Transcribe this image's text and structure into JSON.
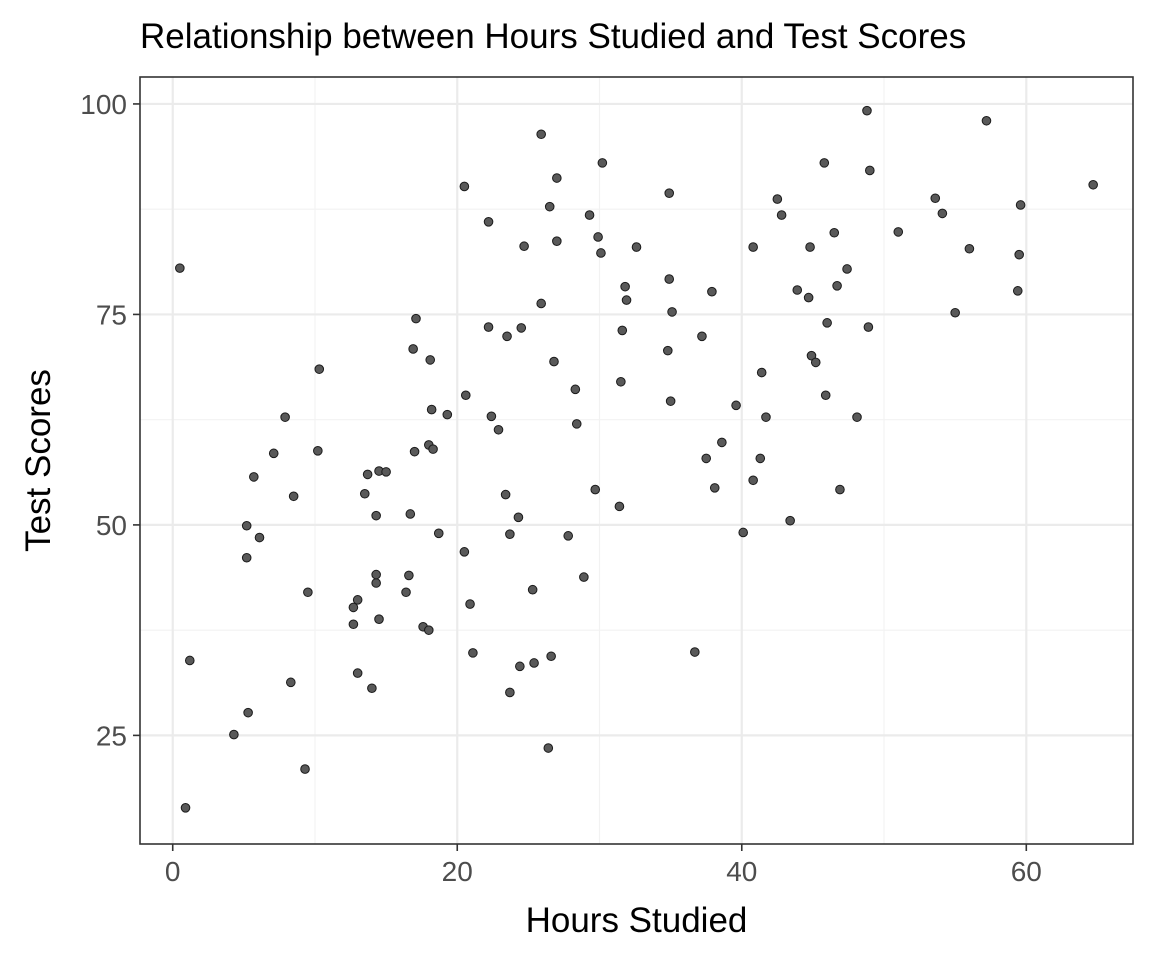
{
  "chart_data": {
    "type": "scatter",
    "title": "Relationship between Hours Studied and Test Scores",
    "xlabel": "Hours Studied",
    "ylabel": "Test Scores",
    "xlim": [
      -2.3,
      67.5
    ],
    "ylim": [
      12.1,
      103.2
    ],
    "x_ticks": [
      0,
      20,
      40,
      60
    ],
    "y_ticks": [
      25,
      50,
      75,
      100
    ],
    "x_minor": [
      10,
      30,
      50
    ],
    "y_minor": [
      37.5,
      62.5,
      87.5
    ],
    "grid": true,
    "legend": "none",
    "point_color": "#595959",
    "points": [
      [
        0.5,
        80.5
      ],
      [
        1.2,
        33.9
      ],
      [
        0.9,
        16.4
      ],
      [
        4.3,
        25.1
      ],
      [
        5.3,
        27.7
      ],
      [
        5.2,
        46.1
      ],
      [
        5.2,
        49.9
      ],
      [
        5.7,
        55.7
      ],
      [
        6.1,
        48.5
      ],
      [
        7.1,
        58.5
      ],
      [
        7.9,
        62.8
      ],
      [
        8.3,
        31.3
      ],
      [
        8.5,
        53.4
      ],
      [
        9.3,
        21.0
      ],
      [
        9.5,
        42.0
      ],
      [
        10.2,
        58.8
      ],
      [
        10.3,
        68.5
      ],
      [
        12.7,
        38.2
      ],
      [
        12.7,
        40.2
      ],
      [
        13.0,
        41.1
      ],
      [
        13.0,
        32.4
      ],
      [
        13.5,
        53.7
      ],
      [
        13.7,
        56.0
      ],
      [
        14.0,
        30.6
      ],
      [
        14.3,
        43.1
      ],
      [
        14.3,
        44.1
      ],
      [
        14.3,
        51.1
      ],
      [
        14.5,
        38.8
      ],
      [
        14.5,
        56.4
      ],
      [
        15.0,
        56.3
      ],
      [
        16.4,
        42.0
      ],
      [
        16.6,
        44.0
      ],
      [
        16.7,
        51.3
      ],
      [
        16.9,
        70.9
      ],
      [
        17.0,
        58.7
      ],
      [
        17.1,
        74.5
      ],
      [
        17.6,
        37.9
      ],
      [
        18.0,
        37.5
      ],
      [
        18.0,
        59.5
      ],
      [
        18.1,
        69.6
      ],
      [
        18.2,
        63.7
      ],
      [
        18.3,
        59.0
      ],
      [
        18.7,
        49.0
      ],
      [
        19.3,
        63.1
      ],
      [
        20.5,
        90.2
      ],
      [
        20.5,
        46.8
      ],
      [
        20.6,
        65.4
      ],
      [
        20.9,
        40.6
      ],
      [
        21.1,
        34.8
      ],
      [
        22.2,
        86.0
      ],
      [
        22.2,
        73.5
      ],
      [
        22.4,
        62.9
      ],
      [
        22.9,
        61.3
      ],
      [
        23.4,
        53.6
      ],
      [
        23.5,
        72.4
      ],
      [
        23.7,
        30.1
      ],
      [
        23.7,
        48.9
      ],
      [
        24.3,
        50.9
      ],
      [
        24.4,
        33.2
      ],
      [
        24.5,
        73.4
      ],
      [
        24.7,
        83.1
      ],
      [
        25.3,
        42.3
      ],
      [
        25.4,
        33.6
      ],
      [
        25.9,
        96.4
      ],
      [
        25.9,
        76.3
      ],
      [
        26.4,
        23.5
      ],
      [
        26.5,
        87.8
      ],
      [
        26.6,
        34.4
      ],
      [
        26.8,
        69.4
      ],
      [
        27.0,
        91.2
      ],
      [
        27.0,
        83.7
      ],
      [
        27.8,
        48.7
      ],
      [
        28.3,
        66.1
      ],
      [
        28.4,
        62.0
      ],
      [
        28.9,
        43.8
      ],
      [
        29.3,
        86.8
      ],
      [
        29.7,
        54.2
      ],
      [
        29.9,
        84.2
      ],
      [
        30.1,
        82.3
      ],
      [
        30.2,
        93.0
      ],
      [
        31.4,
        52.2
      ],
      [
        31.5,
        67.0
      ],
      [
        31.6,
        73.1
      ],
      [
        31.8,
        78.3
      ],
      [
        31.9,
        76.7
      ],
      [
        32.6,
        83.0
      ],
      [
        34.8,
        70.7
      ],
      [
        34.9,
        79.2
      ],
      [
        34.9,
        89.4
      ],
      [
        35.0,
        64.7
      ],
      [
        35.1,
        75.3
      ],
      [
        36.7,
        34.9
      ],
      [
        37.2,
        72.4
      ],
      [
        37.5,
        57.9
      ],
      [
        37.9,
        77.7
      ],
      [
        38.1,
        54.4
      ],
      [
        38.6,
        59.8
      ],
      [
        39.6,
        64.2
      ],
      [
        40.1,
        49.1
      ],
      [
        40.8,
        55.3
      ],
      [
        40.8,
        83.0
      ],
      [
        41.3,
        57.9
      ],
      [
        41.4,
        68.1
      ],
      [
        41.7,
        62.8
      ],
      [
        42.5,
        88.7
      ],
      [
        42.8,
        86.8
      ],
      [
        43.4,
        50.5
      ],
      [
        43.9,
        77.9
      ],
      [
        44.7,
        77.0
      ],
      [
        44.8,
        83.0
      ],
      [
        44.9,
        70.1
      ],
      [
        45.2,
        69.3
      ],
      [
        45.8,
        93.0
      ],
      [
        45.9,
        65.4
      ],
      [
        46.0,
        74.0
      ],
      [
        46.5,
        84.7
      ],
      [
        46.7,
        78.4
      ],
      [
        46.9,
        54.2
      ],
      [
        47.4,
        80.4
      ],
      [
        48.1,
        62.8
      ],
      [
        48.8,
        99.2
      ],
      [
        48.9,
        73.5
      ],
      [
        49.0,
        92.1
      ],
      [
        51.0,
        84.8
      ],
      [
        53.6,
        88.8
      ],
      [
        54.1,
        87.0
      ],
      [
        55.0,
        75.2
      ],
      [
        56.0,
        82.8
      ],
      [
        57.2,
        98.0
      ],
      [
        59.4,
        77.8
      ],
      [
        59.5,
        82.1
      ],
      [
        59.6,
        88.0
      ],
      [
        64.7,
        90.4
      ]
    ]
  }
}
